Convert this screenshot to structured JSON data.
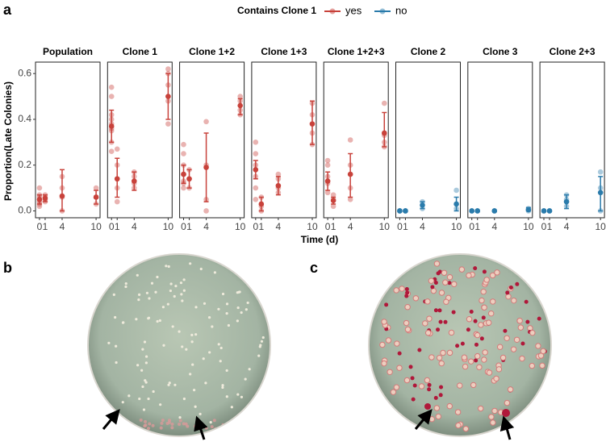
{
  "panel_labels": [
    "a",
    "b",
    "c"
  ],
  "chart_data": {
    "type": "scatter",
    "legend_title": "Contains Clone 1",
    "series": [
      {
        "name": "yes",
        "color": "#c8423b"
      },
      {
        "name": "no",
        "color": "#2a7bab"
      }
    ],
    "x_label": "Time (d)",
    "y_label": "Proportion(Late Colonies)",
    "xlim": [
      -0.7,
      10.7
    ],
    "xticks": [
      0,
      1,
      4,
      10
    ],
    "ylim": [
      -0.03,
      0.65
    ],
    "yticks": [
      {
        "value": 0,
        "label": "0.0"
      },
      {
        "value": 0.2,
        "label": "0.2"
      },
      {
        "value": 0.4,
        "label": "0.4"
      },
      {
        "value": 0.6,
        "label": "0.6"
      }
    ],
    "facets": [
      {
        "title": "Population",
        "group": "yes",
        "points": {
          "x": [
            0,
            0,
            0,
            0,
            0,
            0,
            0,
            1,
            1,
            1,
            1,
            4,
            4,
            4,
            4,
            10,
            10,
            10
          ],
          "values": [
            0.03,
            0.05,
            0.07,
            0.1,
            0.06,
            0.04,
            0.02,
            0.04,
            0.06,
            0.07,
            0.05,
            0,
            0.06,
            0.1,
            0.15,
            0.03,
            0.06,
            0.1
          ]
        },
        "summary": {
          "x": [
            0,
            1,
            4,
            10
          ],
          "values": [
            0.05,
            0.055,
            0.065,
            0.06
          ],
          "lower": [
            0.03,
            0.04,
            0,
            0.03
          ],
          "upper": [
            0.07,
            0.07,
            0.18,
            0.09
          ]
        }
      },
      {
        "title": "Clone 1",
        "group": "yes",
        "points": {
          "x": [
            0,
            0,
            0,
            0,
            0,
            0,
            0,
            0,
            0,
            1,
            1,
            1,
            1,
            1,
            4,
            4,
            4,
            4,
            10,
            10,
            10,
            10,
            10
          ],
          "values": [
            0.3,
            0.35,
            0.38,
            0.4,
            0.42,
            0.5,
            0.54,
            0.36,
            0.26,
            0.04,
            0.1,
            0.14,
            0.27,
            0.2,
            0.1,
            0.12,
            0.15,
            0.17,
            0.38,
            0.48,
            0.55,
            0.6,
            0.62
          ]
        },
        "summary": {
          "x": [
            0,
            1,
            4,
            10
          ],
          "values": [
            0.37,
            0.14,
            0.13,
            0.5
          ],
          "lower": [
            0.3,
            0.06,
            0.09,
            0.4
          ],
          "upper": [
            0.44,
            0.23,
            0.17,
            0.6
          ]
        }
      },
      {
        "title": "Clone 1+2",
        "group": "yes",
        "points": {
          "x": [
            0,
            0,
            0,
            0,
            0,
            0,
            0,
            1,
            1,
            1,
            4,
            4,
            4,
            4,
            10,
            10,
            10,
            10
          ],
          "values": [
            0.1,
            0.13,
            0.16,
            0.2,
            0.25,
            0.29,
            0.12,
            0.1,
            0.14,
            0.18,
            0,
            0.05,
            0.2,
            0.39,
            0.42,
            0.44,
            0.48,
            0.5
          ]
        },
        "summary": {
          "x": [
            0,
            1,
            4,
            10
          ],
          "values": [
            0.16,
            0.14,
            0.19,
            0.46
          ],
          "lower": [
            0.12,
            0.1,
            0.04,
            0.42
          ],
          "upper": [
            0.2,
            0.18,
            0.34,
            0.49
          ]
        }
      },
      {
        "title": "Clone 1+3",
        "group": "yes",
        "points": {
          "x": [
            0,
            0,
            0,
            0,
            0,
            0,
            1,
            1,
            1,
            4,
            4,
            4,
            4,
            10,
            10,
            10,
            10
          ],
          "values": [
            0.05,
            0.1,
            0.15,
            0.2,
            0.25,
            0.3,
            0,
            0.02,
            0.06,
            0.08,
            0.1,
            0.14,
            0.16,
            0.29,
            0.34,
            0.42,
            0.47
          ]
        },
        "summary": {
          "x": [
            0,
            1,
            4,
            10
          ],
          "values": [
            0.18,
            0.03,
            0.11,
            0.38
          ],
          "lower": [
            0.14,
            0,
            0.07,
            0.29
          ],
          "upper": [
            0.22,
            0.06,
            0.15,
            0.48
          ]
        }
      },
      {
        "title": "Clone 1+2+3",
        "group": "yes",
        "points": {
          "x": [
            0,
            0,
            0,
            0,
            0,
            1,
            1,
            1,
            4,
            4,
            4,
            4,
            10,
            10,
            10,
            10
          ],
          "values": [
            0.08,
            0.12,
            0.15,
            0.2,
            0.22,
            0.02,
            0.05,
            0.07,
            0.05,
            0.1,
            0.2,
            0.31,
            0.28,
            0.3,
            0.33,
            0.47
          ]
        },
        "summary": {
          "x": [
            0,
            1,
            4,
            10
          ],
          "values": [
            0.13,
            0.045,
            0.16,
            0.34
          ],
          "lower": [
            0.09,
            0.03,
            0.06,
            0.28
          ],
          "upper": [
            0.17,
            0.06,
            0.25,
            0.43
          ]
        }
      },
      {
        "title": "Clone 2",
        "group": "no",
        "points": {
          "x": [
            0,
            0,
            1,
            1,
            4,
            4,
            10,
            10
          ],
          "values": [
            0,
            0,
            0,
            0,
            0.01,
            0.04,
            0.01,
            0.09
          ]
        },
        "summary": {
          "x": [
            0,
            1,
            4,
            10
          ],
          "values": [
            0,
            0,
            0.025,
            0.03
          ],
          "lower": [
            0,
            0,
            0.01,
            0
          ],
          "upper": [
            0,
            0,
            0.04,
            0.06
          ]
        }
      },
      {
        "title": "Clone 3",
        "group": "no",
        "points": {
          "x": [
            0,
            1,
            4,
            10,
            10
          ],
          "values": [
            0,
            0,
            0,
            0.01,
            0
          ]
        },
        "summary": {
          "x": [
            0,
            1,
            4,
            10
          ],
          "values": [
            0,
            0,
            0,
            0.005
          ],
          "lower": [
            0,
            0,
            0,
            0
          ],
          "upper": [
            0,
            0,
            0,
            0.015
          ]
        }
      },
      {
        "title": "Clone 2+3",
        "group": "no",
        "points": {
          "x": [
            0,
            1,
            4,
            4,
            4,
            10,
            10,
            10
          ],
          "values": [
            0,
            0,
            0.02,
            0.05,
            0.07,
            0,
            0.1,
            0.17
          ]
        },
        "summary": {
          "x": [
            0,
            1,
            4,
            10
          ],
          "values": [
            0,
            0,
            0.04,
            0.08
          ],
          "lower": [
            0,
            0,
            0.01,
            0
          ],
          "upper": [
            0,
            0,
            0.07,
            0.15
          ]
        }
      }
    ]
  }
}
